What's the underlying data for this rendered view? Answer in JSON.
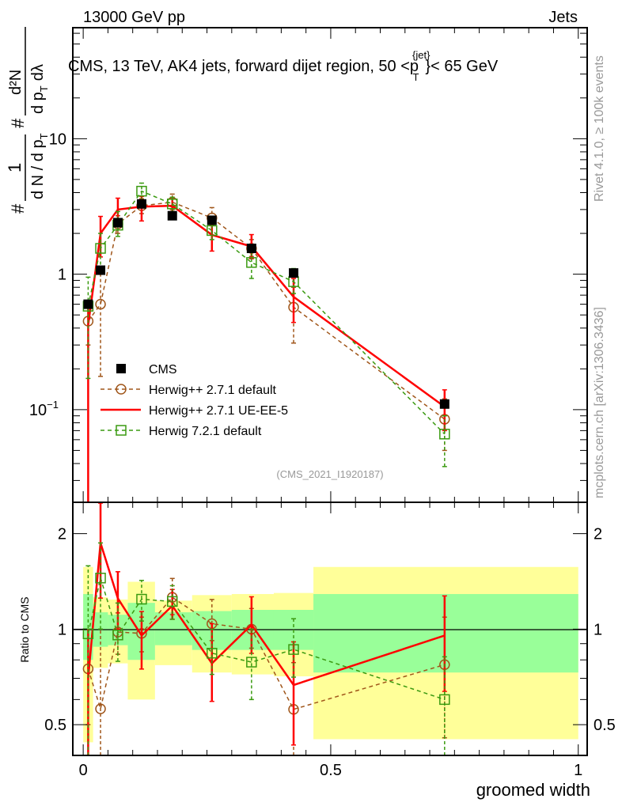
{
  "header": {
    "left": "13000 GeV pp",
    "right": "Jets"
  },
  "side": {
    "rivet": "Rivet 4.1.0, ≥ 100k events",
    "mcplots": "mcplots.cern.ch [arXiv:1306.3436]"
  },
  "citation": "(CMS_2021_I1920187)",
  "chart_data": {
    "type": "line",
    "title": "CMS, 13 TeV, AK4 jets, forward dijet region, 50 <p",
    "title_sup": "{jet}",
    "title_sub": "T",
    "title_end": "}< 65 GeV",
    "ylabel": {
      "hash1": "#",
      "num": "1",
      "den": "d N / d p",
      "den_sub": "T",
      "hash2": "#",
      "num2": "d²N",
      "den2": "d p",
      "den2_sub": "T",
      "den2_end": "dλ"
    },
    "xlabel": "groomed width",
    "ratio_ylabel": "Ratio to CMS",
    "xlim": [
      -0.021,
      1.018
    ],
    "ylim": [
      0.0207,
      66
    ],
    "yscale": "log",
    "ratio_ylim": [
      0.4,
      2.51
    ],
    "xticks": [
      {
        "v": 0,
        "l": "0"
      },
      {
        "v": 0.5,
        "l": "0.5"
      },
      {
        "v": 1,
        "l": "1"
      }
    ],
    "yticks": [
      {
        "v": 0.1,
        "l": "10",
        "sup": "−1"
      },
      {
        "v": 1,
        "l": "1",
        "sup": ""
      },
      {
        "v": 10,
        "l": "10",
        "sup": ""
      }
    ],
    "ratio_yticks": [
      {
        "v": 0.5,
        "l": "0.5"
      },
      {
        "v": 1,
        "l": "1"
      },
      {
        "v": 2,
        "l": "2"
      }
    ],
    "bin_edges": [
      0,
      0.02,
      0.05,
      0.09,
      0.145,
      0.22,
      0.3,
      0.385,
      0.465,
      1.0
    ],
    "x": [
      0.01,
      0.035,
      0.07,
      0.118,
      0.18,
      0.26,
      0.34,
      0.425,
      0.73
    ],
    "cms": [
      0.6,
      1.07,
      2.4,
      3.3,
      2.7,
      2.5,
      1.55,
      1.02,
      0.11
    ],
    "band_yellow": [
      [
        0.44,
        1.57
      ],
      [
        0.755,
        1.26
      ],
      [
        0.78,
        1.24
      ],
      [
        0.6,
        1.41
      ],
      [
        0.77,
        1.23
      ],
      [
        0.73,
        1.28
      ],
      [
        0.72,
        1.29
      ],
      [
        0.71,
        1.3
      ],
      [
        0.45,
        1.57
      ]
    ],
    "band_green": [
      [
        0.8,
        1.29
      ],
      [
        0.88,
        1.13
      ],
      [
        0.89,
        1.11
      ],
      [
        0.8,
        1.21
      ],
      [
        0.89,
        1.13
      ],
      [
        0.86,
        1.14
      ],
      [
        0.86,
        1.15
      ],
      [
        0.86,
        1.15
      ],
      [
        0.73,
        1.29
      ]
    ],
    "legend_position": "middle-left",
    "series": [
      {
        "name": "CMS",
        "color": "#000000",
        "marker": "square-filled",
        "dash": "none"
      },
      {
        "name": "Herwig++ 2.7.1 default",
        "color": "#a0561a",
        "marker": "circle",
        "dash": "dashed",
        "values": [
          0.45,
          0.6,
          2.35,
          3.2,
          3.4,
          2.6,
          1.55,
          0.57,
          0.085
        ],
        "err": [
          [
            0.3,
            0.6
          ],
          [
            0.176,
            1.07
          ],
          [
            2.0,
            2.7
          ],
          [
            2.8,
            3.6
          ],
          [
            3.0,
            3.9
          ],
          [
            2.3,
            3.1
          ],
          [
            1.35,
            1.8
          ],
          [
            0.31,
            0.8
          ],
          [
            0.05,
            0.12
          ]
        ]
      },
      {
        "name": "Herwig++ 2.7.1 UE-EE-5",
        "color": "#ff0000",
        "marker": "none",
        "dash": "solid",
        "values": [
          0.42,
          2.0,
          3.0,
          3.15,
          3.2,
          1.95,
          1.6,
          0.68,
          0.105
        ],
        "err": [
          [
            0.001,
            0.6
          ],
          [
            1.34,
            2.67
          ],
          [
            2.4,
            3.64
          ],
          [
            2.47,
            3.75
          ],
          [
            2.9,
            3.6
          ],
          [
            1.48,
            2.6
          ],
          [
            1.3,
            1.96
          ],
          [
            0.44,
            0.93
          ],
          [
            0.07,
            0.14
          ]
        ]
      },
      {
        "name": "Herwig 7.2.1 default",
        "color": "#3a9a10",
        "marker": "square",
        "dash": "dashed",
        "values": [
          0.58,
          1.55,
          2.3,
          4.1,
          3.3,
          2.1,
          1.22,
          0.88,
          0.066
        ],
        "err": [
          [
            0.17,
            0.95
          ],
          [
            1.07,
            2.0
          ],
          [
            1.9,
            2.9
          ],
          [
            3.5,
            4.7
          ],
          [
            2.9,
            3.7
          ],
          [
            1.8,
            2.5
          ],
          [
            0.93,
            1.55
          ],
          [
            0.72,
            1.1
          ],
          [
            0.038,
            0.09
          ]
        ]
      }
    ]
  }
}
